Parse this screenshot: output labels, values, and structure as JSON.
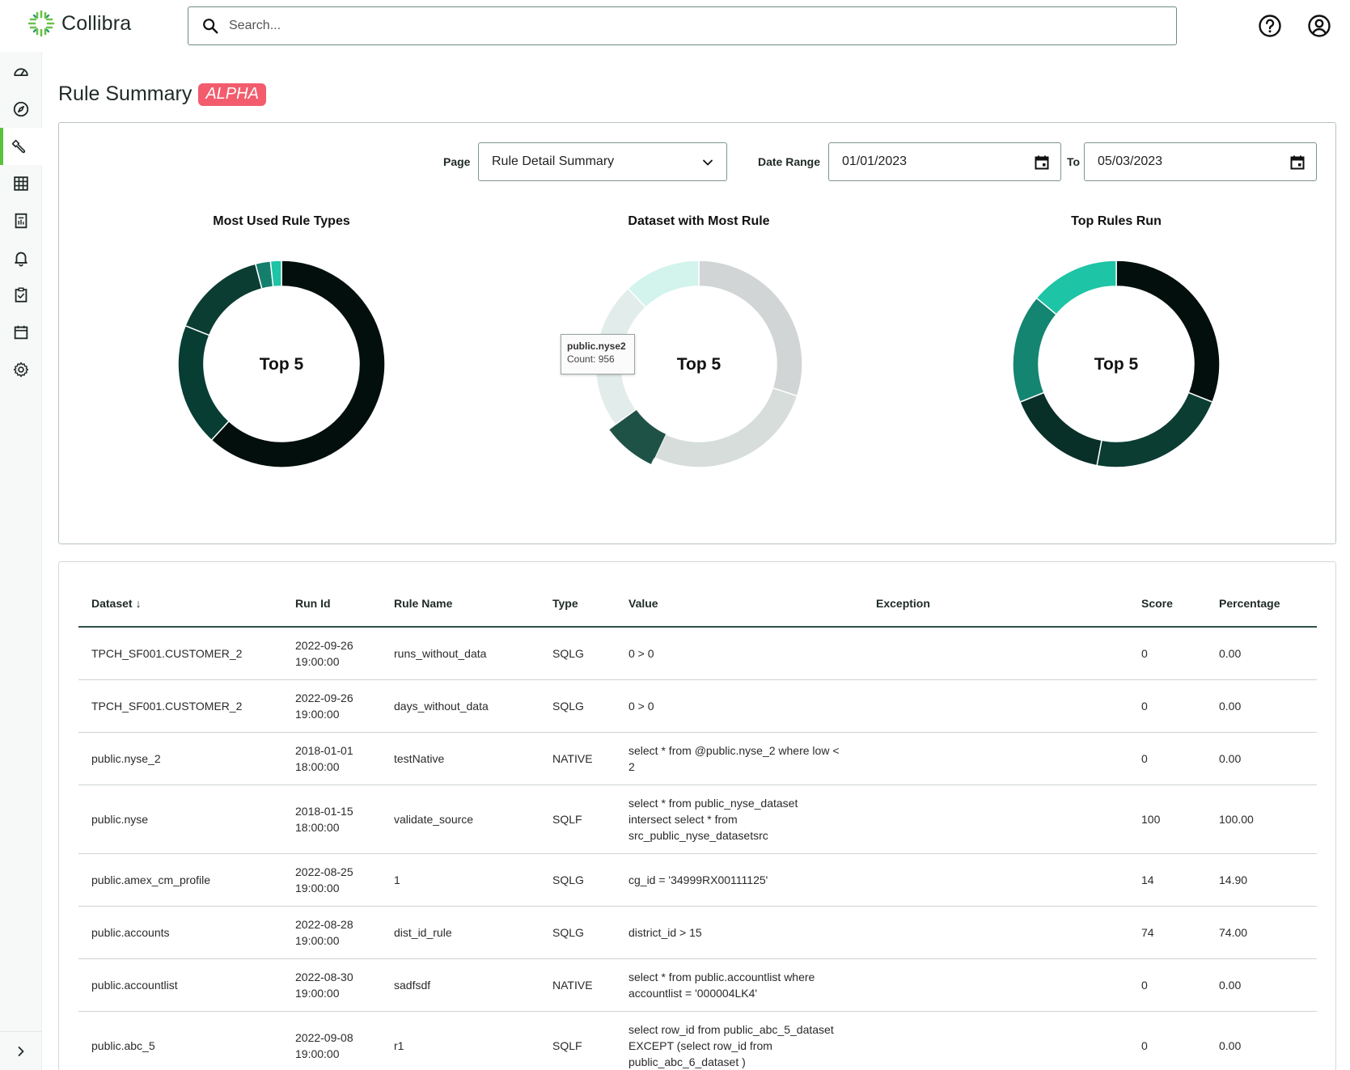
{
  "app": {
    "name": "Collibra"
  },
  "search": {
    "placeholder": "Search..."
  },
  "sidebar": {
    "items": [
      {
        "icon": "dashboard-gauge-icon"
      },
      {
        "icon": "compass-icon"
      },
      {
        "icon": "rules-wrench-icon",
        "active": true
      },
      {
        "icon": "table-grid-icon"
      },
      {
        "icon": "report-icon"
      },
      {
        "icon": "bell-icon"
      },
      {
        "icon": "clipboard-check-icon"
      },
      {
        "icon": "calendar-icon"
      },
      {
        "icon": "gear-icon"
      }
    ],
    "expand_icon": "chevron-right-icon"
  },
  "page": {
    "title": "Rule Summary",
    "badge": "ALPHA"
  },
  "filters": {
    "page_label": "Page",
    "page_value": "Rule Detail Summary",
    "date_range_label": "Date Range",
    "date_from": "01/01/2023",
    "to_label": "To",
    "date_to": "05/03/2023"
  },
  "chart_data": [
    {
      "type": "pie",
      "title": "Most Used Rule Types",
      "center_label": "Top 5",
      "values": [
        58,
        18,
        14,
        2.2,
        1.6
      ],
      "colors": [
        "#020f0c",
        "#083d33",
        "#0b3d33",
        "#137f6c",
        "#1dc4a5"
      ]
    },
    {
      "type": "pie",
      "title": "Dataset with Most Rule",
      "center_label": "Top 5",
      "values": [
        30,
        27,
        8,
        23,
        12
      ],
      "colors": [
        "#d2d5d5",
        "#d6dddb",
        "#1f5247",
        "#e2ecea",
        "#d3f3ed"
      ],
      "highlight_index": 2,
      "tooltip": {
        "name": "public.nyse2",
        "count_label": "Count:",
        "count": "956"
      }
    },
    {
      "type": "pie",
      "title": "Top Rules Run",
      "center_label": "Top 5",
      "values": [
        31,
        22,
        16,
        17,
        14
      ],
      "colors": [
        "#020f0c",
        "#0b3d33",
        "#083028",
        "#138570",
        "#1dc4a5"
      ]
    }
  ],
  "table": {
    "columns": [
      "Dataset",
      "Run Id",
      "Rule Name",
      "Type",
      "Value",
      "Exception",
      "Score",
      "Percentage"
    ],
    "sort_indicator": "↓",
    "rows": [
      {
        "dataset": "TPCH_SF001.CUSTOMER_2",
        "run_date": "2022-09-26",
        "run_time": "19:00:00",
        "rule": "runs_without_data",
        "type": "SQLG",
        "value": [
          "0 > 0"
        ],
        "exception": "",
        "score": "0",
        "pct": "0.00"
      },
      {
        "dataset": "TPCH_SF001.CUSTOMER_2",
        "run_date": "2022-09-26",
        "run_time": "19:00:00",
        "rule": "days_without_data",
        "type": "SQLG",
        "value": [
          "0 > 0"
        ],
        "exception": "",
        "score": "0",
        "pct": "0.00"
      },
      {
        "dataset": "public.nyse_2",
        "run_date": "2018-01-01",
        "run_time": "18:00:00",
        "rule": "testNative",
        "type": "NATIVE",
        "value": [
          "select * from @public.nyse_2 where low <",
          "2"
        ],
        "exception": "",
        "score": "0",
        "pct": "0.00"
      },
      {
        "dataset": "public.nyse",
        "run_date": "2018-01-15",
        "run_time": "18:00:00",
        "rule": "validate_source",
        "type": "SQLF",
        "value": [
          "select * from public_nyse_dataset",
          "intersect select * from",
          "src_public_nyse_datasetsrc"
        ],
        "exception": "",
        "score": "100",
        "pct": "100.00"
      },
      {
        "dataset": "public.amex_cm_profile",
        "run_date": "2022-08-25",
        "run_time": "19:00:00",
        "rule": "1",
        "type": "SQLG",
        "value": [
          "cg_id = '34999RX00111125'"
        ],
        "exception": "",
        "score": "14",
        "pct": "14.90"
      },
      {
        "dataset": "public.accounts",
        "run_date": "2022-08-28",
        "run_time": "19:00:00",
        "rule": "dist_id_rule",
        "type": "SQLG",
        "value": [
          "district_id > 15"
        ],
        "exception": "",
        "score": "74",
        "pct": "74.00"
      },
      {
        "dataset": "public.accountlist",
        "run_date": "2022-08-30",
        "run_time": "19:00:00",
        "rule": "sadfsdf",
        "type": "NATIVE",
        "value": [
          "select * from public.accountlist where",
          "accountlist = '000004LK4'"
        ],
        "exception": "",
        "score": "0",
        "pct": "0.00"
      },
      {
        "dataset": "public.abc_5",
        "run_date": "2022-09-08",
        "run_time": "19:00:00",
        "rule": "r1",
        "type": "SQLF",
        "value": [
          "select row_id from public_abc_5_dataset",
          "EXCEPT (select row_id from",
          "public_abc_6_dataset )"
        ],
        "exception": "",
        "score": "0",
        "pct": "0.00"
      }
    ]
  }
}
